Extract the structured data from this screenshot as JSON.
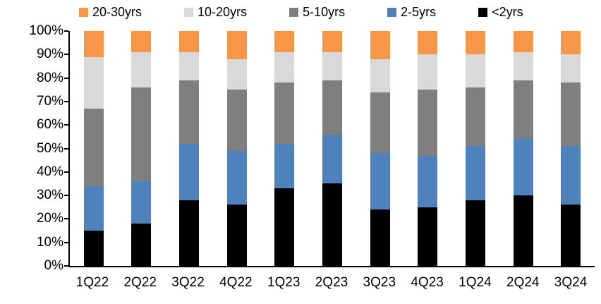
{
  "chart_data": {
    "type": "bar",
    "variant": "100-percent-stacked-column",
    "title": "",
    "xlabel": "",
    "ylabel": "",
    "categories": [
      "1Q22",
      "2Q22",
      "3Q22",
      "4Q22",
      "1Q23",
      "2Q23",
      "3Q23",
      "4Q23",
      "1Q24",
      "2Q24",
      "3Q24"
    ],
    "series": [
      {
        "name": "<2yrs",
        "color": "#000000",
        "values": [
          15,
          18,
          28,
          26,
          33,
          35,
          24,
          25,
          28,
          30,
          26
        ]
      },
      {
        "name": "2-5yrs",
        "color": "#4F81BD",
        "values": [
          19,
          18,
          24,
          23,
          19,
          21,
          24,
          22,
          23,
          24,
          25
        ]
      },
      {
        "name": "5-10yrs",
        "color": "#7F7F7F",
        "values": [
          33,
          40,
          27,
          26,
          26,
          23,
          26,
          28,
          25,
          25,
          27
        ]
      },
      {
        "name": "10-20yrs",
        "color": "#D9D9D9",
        "values": [
          22,
          15,
          12,
          13,
          13,
          12,
          14,
          15,
          14,
          12,
          12
        ]
      },
      {
        "name": "20-30yrs",
        "color": "#F79646",
        "values": [
          11,
          9,
          9,
          12,
          9,
          9,
          12,
          10,
          10,
          9,
          10
        ]
      }
    ],
    "stack_order": "bottom-to-top",
    "ylim": [
      0,
      100
    ],
    "y_tick_labels": [
      "100%",
      "90%",
      "80%",
      "70%",
      "60%",
      "50%",
      "40%",
      "30%",
      "20%",
      "10%",
      "0%"
    ],
    "grid": false,
    "axis_color": "#000000",
    "legend": {
      "position": "top",
      "labels": [
        "20-30yrs",
        "10-20yrs",
        "5-10yrs",
        "2-5yrs",
        "<2yrs"
      ]
    }
  }
}
